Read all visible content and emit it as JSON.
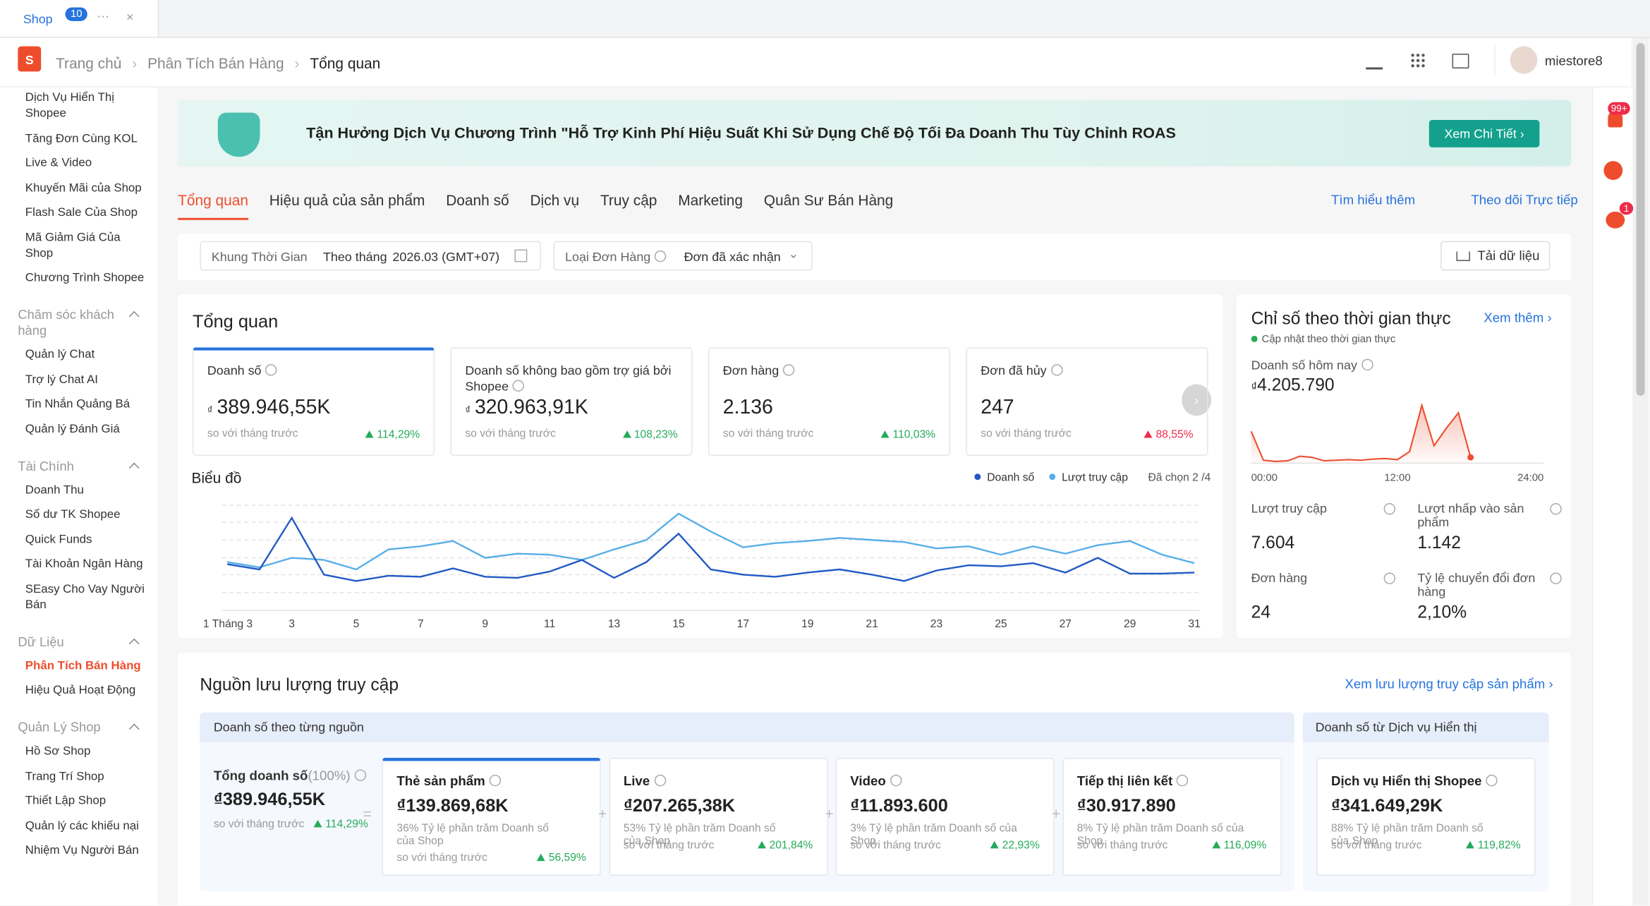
{
  "tab": {
    "label": "Shop",
    "badge": "10"
  },
  "breadcrumb": [
    "Trang chủ",
    "Phân Tích Bán Hàng",
    "Tổng quan"
  ],
  "user": "miestore8",
  "sidebar": [
    {
      "items": [
        "Dịch Vụ Hiển Thị Shopee",
        "Tăng Đơn Cùng KOL",
        "Live & Video",
        "Khuyến Mãi của Shop",
        "Flash Sale Của Shop",
        "Mã Giảm Giá Của Shop",
        "Chương Trình Shopee"
      ]
    },
    {
      "header": "Chăm sóc khách hàng",
      "items": [
        "Quản lý Chat",
        "Trợ lý Chat AI",
        "Tin Nhắn Quảng Bá",
        "Quản lý Đánh Giá"
      ]
    },
    {
      "header": "Tài Chính",
      "items": [
        "Doanh Thu",
        "Số dư TK Shopee",
        "Quick Funds",
        "Tài Khoản Ngân Hàng",
        "SEasy Cho Vay Người Bán"
      ]
    },
    {
      "header": "Dữ Liệu",
      "items": [
        "Phân Tích Bán Hàng",
        "Hiệu Quả Hoạt Động"
      ],
      "active": 0
    },
    {
      "header": "Quản Lý Shop",
      "items": [
        "Hồ Sơ Shop",
        "Trang Trí Shop",
        "Thiết Lập Shop",
        "Quản lý các khiếu nại",
        "Nhiệm Vụ Người Bán"
      ]
    }
  ],
  "banner": {
    "text": "Tận Hưởng Dịch Vụ Chương Trình \"Hỗ Trợ Kinh Phí Hiệu Suất Khi Sử Dụng Chế Độ Tối Đa Doanh Thu Tùy Chỉnh ROAS",
    "button": "Xem Chi Tiết"
  },
  "tabs": {
    "items": [
      "Tổng quan",
      "Hiệu quả của sản phẩm",
      "Doanh số",
      "Dịch vụ",
      "Truy cập",
      "Marketing",
      "Quân Sư Bán Hàng"
    ],
    "active": 0,
    "links": [
      "Tìm hiểu thêm",
      "Theo dõi Trực tiếp"
    ]
  },
  "filters": {
    "time_label": "Khung Thời Gian",
    "time_mode": "Theo tháng",
    "time_value": "2026.03 (GMT+07)",
    "order_label": "Loại Đơn Hàng",
    "order_value": "Đơn đã xác nhận",
    "download": "Tải dữ liệu"
  },
  "compare_label": "so với tháng trước",
  "overview": {
    "title": "Tổng quan",
    "chart_title": "Biểu đồ",
    "selected": "Đã chọn 2 /4",
    "cards": [
      {
        "label": "Doanh số",
        "currency": "₫",
        "value": "389.946,55K",
        "change": "114,29%",
        "color": "#26aa5a"
      },
      {
        "label": "Doanh số không bao gồm trợ giá bởi Shopee",
        "currency": "₫",
        "value": "320.963,91K",
        "change": "108,23%",
        "color": "#26aa5a"
      },
      {
        "label": "Đơn hàng",
        "value": "2.136",
        "change": "110,03%",
        "color": "#26aa5a"
      },
      {
        "label": "Đơn đã hủy",
        "value": "247",
        "change": "88,55%",
        "color": "#ee2c4a"
      }
    ]
  },
  "chart_data": [
    {
      "type": "line",
      "categories": [
        "1 Tháng 3",
        null,
        "3",
        null,
        "5",
        null,
        "7",
        null,
        "9",
        null,
        "11",
        null,
        "13",
        null,
        "15",
        null,
        "17",
        null,
        "19",
        null,
        "21",
        null,
        "23",
        null,
        "25",
        null,
        "27",
        null,
        "29",
        null,
        "31"
      ],
      "series": [
        {
          "name": "Doanh số",
          "color": "#2159c4",
          "values": [
            44,
            39,
            88,
            34,
            28,
            33,
            32,
            40,
            32,
            31,
            37,
            48,
            31,
            46,
            73,
            39,
            34,
            32,
            36,
            39,
            34,
            28,
            38,
            43,
            42,
            45,
            36,
            50,
            35,
            35,
            36
          ]
        },
        {
          "name": "Lượt truy cập",
          "color": "#58aee8",
          "values": [
            46,
            41,
            50,
            48,
            39,
            58,
            61,
            66,
            50,
            54,
            53,
            48,
            58,
            67,
            92,
            75,
            60,
            64,
            66,
            69,
            67,
            65,
            59,
            61,
            53,
            61,
            54,
            62,
            66,
            53,
            45
          ]
        }
      ],
      "ylim": [
        0,
        100
      ],
      "yticks": [
        0,
        17,
        34,
        50,
        67,
        84,
        100
      ],
      "grid": true
    },
    {
      "type": "line",
      "x": [
        0,
        1,
        2,
        3,
        4,
        5,
        6,
        7,
        8,
        9,
        10,
        11,
        12,
        13,
        14,
        15,
        16,
        17,
        18
      ],
      "values": [
        55,
        5,
        3,
        4,
        12,
        10,
        4,
        5,
        6,
        5,
        7,
        8,
        6,
        20,
        100,
        30,
        60,
        87,
        10
      ],
      "color": "#ee4d2d",
      "xlim": [
        0,
        24
      ],
      "xticks": [
        {
          "value": 0,
          "label": "00:00"
        },
        {
          "value": 12,
          "label": "12:00"
        },
        {
          "value": 24,
          "label": "24:00"
        }
      ],
      "ylim": [
        0,
        100
      ]
    }
  ],
  "realtime": {
    "title": "Chỉ số theo thời gian thực",
    "more": "Xem thêm",
    "updated": "Cập nhật theo thời gian thực",
    "today_label": "Doanh số hôm nay",
    "today_currency": "₫",
    "today_value": "4.205.790",
    "metrics": [
      {
        "label": "Lượt truy cập",
        "value": "7.604"
      },
      {
        "label": "Lượt nhấp vào sản phẩm",
        "value": "1.142"
      },
      {
        "label": "Đơn hàng",
        "value": "24"
      },
      {
        "label": "Tỷ lệ chuyển đổi đơn hàng",
        "value": "2,10%"
      }
    ]
  },
  "traffic": {
    "title": "Nguồn lưu lượng truy cập",
    "link": "Xem lưu lượng truy cập sản phẩm",
    "group1": "Doanh số theo từng nguồn",
    "group2": "Doanh số từ Dịch vụ Hiển thị",
    "total": {
      "label": "Tổng doanh số",
      "pct": "(100%)",
      "value": "₫389.946,55K",
      "change": "114,29%"
    },
    "cards": [
      {
        "label": "Thẻ sản phẩm",
        "value": "₫139.869,68K",
        "share": "36% Tỷ lệ phần trăm Doanh số của Shop",
        "change": "56,59%"
      },
      {
        "label": "Live",
        "value": "₫207.265,38K",
        "share": "53% Tỷ lệ phần trăm Doanh số của Shop",
        "change": "201,84%"
      },
      {
        "label": "Video",
        "value": "₫11.893.600",
        "share": "3% Tỷ lệ phần trăm Doanh số của Shop",
        "change": "22,93%"
      },
      {
        "label": "Tiếp thị liên kết",
        "value": "₫30.917.890",
        "share": "8% Tỷ lệ phần trăm Doanh số của Shop",
        "change": "116,09%"
      }
    ],
    "ads": {
      "label": "Dịch vụ Hiển thị Shopee",
      "value": "₫341.649,29K",
      "share": "88% Tỷ lệ phần trăm Doanh số của Shop",
      "change": "119,82%"
    }
  },
  "rail_badges": [
    "99+",
    "1"
  ]
}
